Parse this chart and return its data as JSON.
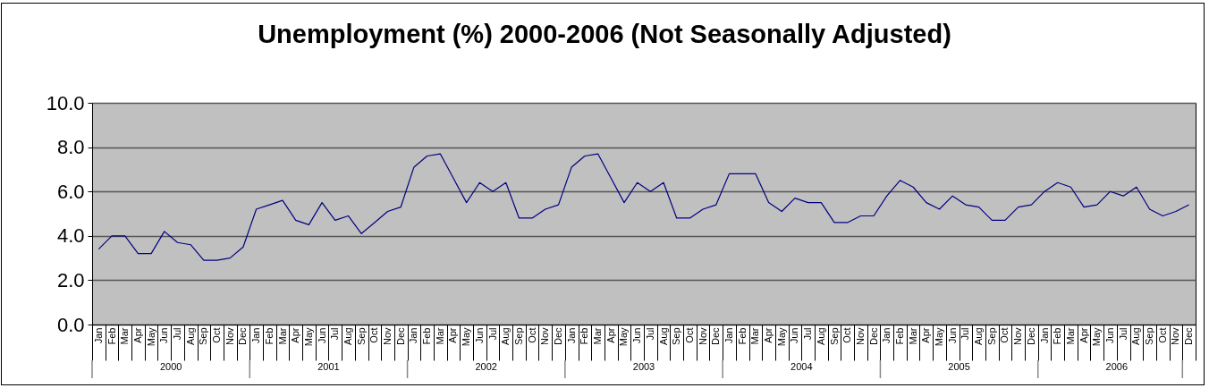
{
  "chart_data": {
    "type": "line",
    "title": "Unemployment (%) 2000-2006 (Not Seasonally Adjusted)",
    "categories": [
      "Jan",
      "Feb",
      "Mar",
      "Apr",
      "May",
      "Jun",
      "Jul",
      "Aug",
      "Sep",
      "Oct",
      "Nov",
      "Dec",
      "Jan",
      "Feb",
      "Mar",
      "Apr",
      "May",
      "Jun",
      "Jul",
      "Aug",
      "Sep",
      "Oct",
      "Nov",
      "Dec",
      "Jan",
      "Feb",
      "Mar",
      "Apr",
      "May",
      "Jun",
      "Jul",
      "Aug",
      "Sep",
      "Oct",
      "Nov",
      "Dec",
      "Jan",
      "Feb",
      "Mar",
      "Apr",
      "May",
      "Jun",
      "Jul",
      "Aug",
      "Sep",
      "Oct",
      "Nov",
      "Dec",
      "Jan",
      "Feb",
      "Mar",
      "Apr",
      "May",
      "Jun",
      "Jul",
      "Aug",
      "Sep",
      "Oct",
      "Nov",
      "Dec",
      "Jan",
      "Feb",
      "Mar",
      "Apr",
      "May",
      "Jun",
      "Jul",
      "Aug",
      "Sep",
      "Oct",
      "Nov",
      "Dec",
      "Jan",
      "Feb",
      "Mar",
      "Apr",
      "May",
      "Jun",
      "Jul",
      "Aug",
      "Sep",
      "Oct",
      "Nov",
      "Dec"
    ],
    "series": [
      {
        "color": "#000080",
        "values": [
          3.4,
          4.0,
          4.0,
          3.2,
          3.2,
          4.2,
          3.7,
          3.6,
          2.9,
          2.9,
          3.0,
          3.5,
          5.2,
          5.4,
          5.6,
          4.7,
          4.5,
          5.5,
          4.7,
          4.9,
          4.1,
          4.6,
          5.1,
          5.3,
          7.1,
          7.6,
          7.7,
          6.6,
          5.5,
          6.4,
          6.0,
          6.4,
          4.8,
          4.8,
          5.2,
          5.4,
          7.1,
          7.6,
          7.7,
          6.6,
          5.5,
          6.4,
          6.0,
          6.4,
          4.8,
          4.8,
          5.2,
          5.4,
          6.8,
          6.8,
          6.8,
          5.5,
          5.1,
          5.7,
          5.5,
          5.5,
          4.6,
          4.6,
          4.9,
          4.9,
          5.8,
          6.5,
          6.2,
          5.5,
          5.2,
          5.8,
          5.4,
          5.3,
          4.7,
          4.7,
          5.3,
          5.4,
          6.0,
          6.4,
          6.2,
          5.3,
          5.4,
          6.0,
          5.8,
          6.2,
          5.2,
          4.9,
          5.1,
          5.4
        ]
      }
    ],
    "annotations": [
      "2000",
      "2001",
      "2002",
      "2003",
      "2004",
      "2005",
      "2006"
    ],
    "ylim": [
      0,
      10
    ],
    "yticks": [
      {
        "value": 0,
        "label": "0.0"
      },
      {
        "value": 2,
        "label": "2.0"
      },
      {
        "value": 4,
        "label": "4.0"
      },
      {
        "value": 6,
        "label": "6.0"
      },
      {
        "value": 8,
        "label": "8.0"
      },
      {
        "value": 10,
        "label": "10.0"
      }
    ],
    "grid": "y",
    "marker": "none",
    "line_style": "solid"
  }
}
